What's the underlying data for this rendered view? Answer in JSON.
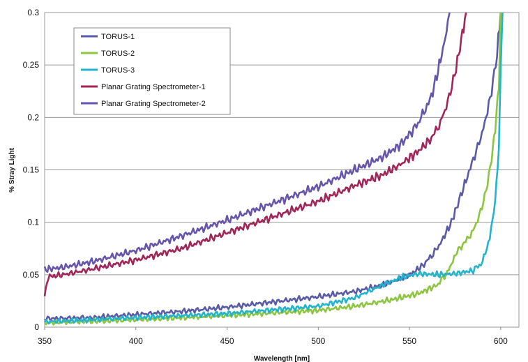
{
  "chart_data": {
    "type": "line",
    "title": "",
    "xlabel": "Wavelength [nm]",
    "ylabel": "% Stray Light",
    "xlim": [
      350,
      610
    ],
    "ylim": [
      0,
      0.3
    ],
    "x_ticks": [
      "350",
      "400",
      "450",
      "500",
      "550",
      "600"
    ],
    "y_ticks": [
      "0",
      "0.05",
      "0.1",
      "0.15",
      "0.2",
      "0.25",
      "0.3"
    ],
    "grid": "horizontal",
    "legend_position": "top-left",
    "series": [
      {
        "name": "TORUS-1",
        "color": "#5a5aa6",
        "x": [
          350,
          375,
          400,
          425,
          450,
          475,
          500,
          520,
          535,
          545,
          552,
          558,
          563,
          567,
          570,
          573,
          575,
          578,
          581,
          585,
          589,
          592,
          595,
          598,
          600
        ],
        "y": [
          0.008,
          0.009,
          0.012,
          0.015,
          0.019,
          0.024,
          0.029,
          0.034,
          0.04,
          0.046,
          0.052,
          0.06,
          0.07,
          0.08,
          0.09,
          0.1,
          0.11,
          0.125,
          0.14,
          0.16,
          0.18,
          0.2,
          0.225,
          0.26,
          0.3
        ]
      },
      {
        "name": "TORUS-2",
        "color": "#8cc63f",
        "x": [
          350,
          400,
          450,
          500,
          520,
          540,
          555,
          565,
          570,
          573,
          576,
          580,
          585,
          589,
          592,
          595,
          597,
          599,
          600
        ],
        "y": [
          0.004,
          0.007,
          0.011,
          0.016,
          0.02,
          0.026,
          0.032,
          0.04,
          0.05,
          0.06,
          0.072,
          0.08,
          0.092,
          0.11,
          0.13,
          0.16,
          0.19,
          0.23,
          0.3
        ]
      },
      {
        "name": "TORUS-3",
        "color": "#22b4cc",
        "x": [
          350,
          400,
          450,
          500,
          520,
          535,
          545,
          555,
          565,
          575,
          585,
          590,
          594,
          597,
          599,
          600,
          601
        ],
        "y": [
          0.005,
          0.009,
          0.013,
          0.02,
          0.028,
          0.04,
          0.047,
          0.051,
          0.05,
          0.051,
          0.054,
          0.062,
          0.085,
          0.12,
          0.17,
          0.24,
          0.3
        ]
      },
      {
        "name": "Planar Grating Spectrometer-1",
        "color": "#a0265a",
        "x": [
          350,
          352,
          360,
          375,
          400,
          425,
          450,
          475,
          500,
          520,
          535,
          545,
          555,
          562,
          567,
          571,
          574,
          577,
          579,
          581
        ],
        "y": [
          0.03,
          0.048,
          0.05,
          0.055,
          0.064,
          0.075,
          0.09,
          0.105,
          0.12,
          0.135,
          0.145,
          0.155,
          0.168,
          0.18,
          0.195,
          0.215,
          0.235,
          0.26,
          0.28,
          0.3
        ]
      },
      {
        "name": "Planar Grating Spectrometer-2",
        "color": "#6655aa",
        "x": [
          350,
          360,
          375,
          400,
          425,
          450,
          475,
          500,
          520,
          535,
          545,
          553,
          558,
          562,
          565,
          567,
          569,
          571,
          572
        ],
        "y": [
          0.055,
          0.057,
          0.062,
          0.073,
          0.087,
          0.102,
          0.118,
          0.134,
          0.15,
          0.162,
          0.174,
          0.19,
          0.205,
          0.22,
          0.24,
          0.255,
          0.27,
          0.29,
          0.3
        ]
      }
    ]
  }
}
